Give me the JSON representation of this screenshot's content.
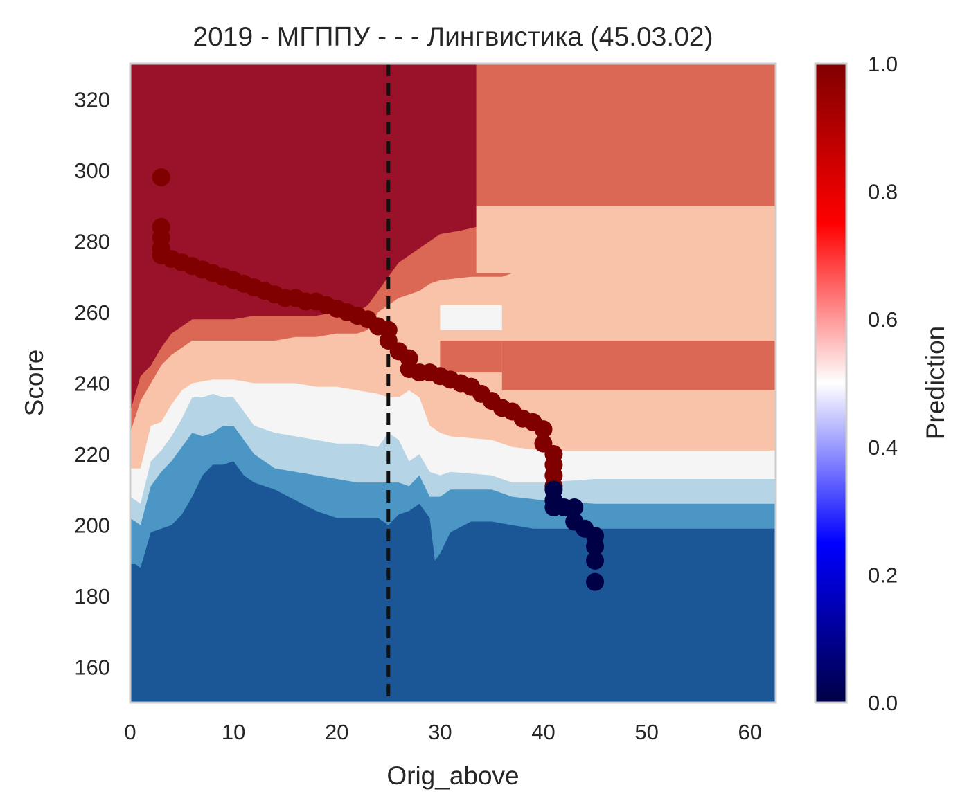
{
  "chart_data": {
    "type": "heatmap",
    "title": "2019 - МГППУ - - - Лингвистика (45.03.02)",
    "xlabel": "Orig_above",
    "ylabel": "Score",
    "xlim": [
      0,
      62.5
    ],
    "ylim": [
      150,
      330
    ],
    "x_ticks": [
      0,
      10,
      20,
      30,
      40,
      50,
      60
    ],
    "y_ticks": [
      160,
      180,
      200,
      220,
      240,
      260,
      280,
      300,
      320
    ],
    "grid": false,
    "threshold_line": {
      "x": 25,
      "style": "dashed",
      "color": "#111111"
    },
    "colorbar": {
      "label": "Prediction",
      "range": [
        0,
        1
      ],
      "ticks": [
        "0.0",
        "0.2",
        "0.4",
        "0.6",
        "0.8",
        "1.0"
      ],
      "cmap": "seismic"
    },
    "contour_levels": [
      {
        "range": [
          0.0,
          0.15
        ],
        "color": "#1b5797"
      },
      {
        "range": [
          0.15,
          0.3
        ],
        "color": "#4b96c5"
      },
      {
        "range": [
          0.3,
          0.45
        ],
        "color": "#b5d5e7"
      },
      {
        "range": [
          0.45,
          0.6
        ],
        "color": "#f5f5f5"
      },
      {
        "range": [
          0.6,
          0.75
        ],
        "color": "#f8c3a8"
      },
      {
        "range": [
          0.75,
          0.9
        ],
        "color": "#db6855"
      },
      {
        "range": [
          0.9,
          1.0
        ],
        "color": "#9a1229"
      }
    ],
    "contour_boundaries": {
      "low_1": [
        [
          0,
          189
        ],
        [
          0.5,
          189
        ],
        [
          1,
          188
        ],
        [
          2,
          198
        ],
        [
          3,
          199
        ],
        [
          4,
          200
        ],
        [
          5,
          203
        ],
        [
          6,
          208
        ],
        [
          7,
          214
        ],
        [
          8,
          217
        ],
        [
          9,
          217
        ],
        [
          10,
          218
        ],
        [
          11,
          214
        ],
        [
          12,
          212
        ],
        [
          14,
          210
        ],
        [
          16,
          207
        ],
        [
          18,
          204
        ],
        [
          20,
          202
        ],
        [
          22,
          202
        ],
        [
          24,
          202
        ],
        [
          25,
          200
        ],
        [
          26,
          203
        ],
        [
          27,
          204
        ],
        [
          28,
          206
        ],
        [
          29,
          202
        ],
        [
          29.5,
          190
        ],
        [
          30,
          192
        ],
        [
          31,
          198
        ],
        [
          33,
          201
        ],
        [
          35,
          201
        ],
        [
          37,
          200
        ],
        [
          39,
          199
        ],
        [
          41,
          199
        ],
        [
          45,
          199
        ],
        [
          62.5,
          199
        ]
      ],
      "low_2": [
        [
          0,
          202
        ],
        [
          1,
          200
        ],
        [
          2,
          211
        ],
        [
          3,
          215
        ],
        [
          4,
          218
        ],
        [
          5,
          222
        ],
        [
          6,
          226
        ],
        [
          7,
          225
        ],
        [
          8,
          226
        ],
        [
          9,
          228
        ],
        [
          10,
          228
        ],
        [
          11,
          224
        ],
        [
          12,
          220
        ],
        [
          14,
          216
        ],
        [
          16,
          215
        ],
        [
          18,
          214
        ],
        [
          20,
          213
        ],
        [
          22,
          212
        ],
        [
          24,
          212
        ],
        [
          25,
          212
        ],
        [
          26,
          212
        ],
        [
          27,
          211
        ],
        [
          28,
          214
        ],
        [
          29,
          208
        ],
        [
          30,
          208
        ],
        [
          31,
          210
        ],
        [
          35,
          210
        ],
        [
          37,
          208
        ],
        [
          40,
          207
        ],
        [
          45,
          206
        ],
        [
          62.5,
          206
        ]
      ],
      "mid": [
        [
          0,
          208
        ],
        [
          1,
          206
        ],
        [
          2,
          218
        ],
        [
          3,
          221
        ],
        [
          4,
          225
        ],
        [
          5,
          230
        ],
        [
          6,
          236
        ],
        [
          7,
          236
        ],
        [
          8,
          237
        ],
        [
          9,
          236
        ],
        [
          10,
          236
        ],
        [
          11,
          232
        ],
        [
          12,
          228
        ],
        [
          14,
          226
        ],
        [
          16,
          225
        ],
        [
          18,
          224
        ],
        [
          20,
          223
        ],
        [
          22,
          223
        ],
        [
          24,
          222
        ],
        [
          25,
          226
        ],
        [
          26,
          224
        ],
        [
          27,
          218
        ],
        [
          28,
          220
        ],
        [
          29,
          215
        ],
        [
          30,
          214
        ],
        [
          31,
          215
        ],
        [
          35,
          214
        ],
        [
          37,
          212
        ],
        [
          40,
          212
        ],
        [
          45,
          213
        ],
        [
          62.5,
          213
        ]
      ],
      "upper": [
        [
          0,
          216
        ],
        [
          1,
          216
        ],
        [
          2,
          228
        ],
        [
          3,
          229
        ],
        [
          4,
          234
        ],
        [
          5,
          238
        ],
        [
          6,
          240
        ],
        [
          8,
          241
        ],
        [
          10,
          241
        ],
        [
          12,
          240
        ],
        [
          14,
          240
        ],
        [
          16,
          240
        ],
        [
          18,
          239
        ],
        [
          20,
          239
        ],
        [
          22,
          238
        ],
        [
          24,
          237
        ],
        [
          25,
          236
        ],
        [
          26,
          236
        ],
        [
          27,
          238
        ],
        [
          28,
          236
        ],
        [
          29,
          228
        ],
        [
          30,
          226
        ],
        [
          31,
          225
        ],
        [
          35,
          224
        ],
        [
          37,
          222
        ],
        [
          40,
          221
        ],
        [
          45,
          221
        ],
        [
          62.5,
          221
        ]
      ],
      "high_1": [
        [
          0,
          226
        ],
        [
          1,
          235
        ],
        [
          2,
          240
        ],
        [
          3,
          245
        ],
        [
          4,
          248
        ],
        [
          5,
          250
        ],
        [
          6,
          252
        ],
        [
          8,
          252
        ],
        [
          10,
          252
        ],
        [
          12,
          252
        ],
        [
          14,
          252
        ],
        [
          16,
          253
        ],
        [
          18,
          253
        ],
        [
          20,
          254
        ],
        [
          22,
          254
        ],
        [
          23,
          255
        ],
        [
          24,
          260
        ],
        [
          25,
          262
        ],
        [
          26,
          264
        ],
        [
          28,
          266
        ],
        [
          29,
          268
        ],
        [
          30,
          269
        ],
        [
          33,
          270
        ],
        [
          36,
          270
        ],
        [
          37,
          271
        ],
        [
          40,
          271
        ],
        [
          45,
          271
        ],
        [
          50,
          271
        ],
        [
          62.5,
          271
        ]
      ],
      "high_2": [
        [
          0,
          232
        ],
        [
          1,
          242
        ],
        [
          2,
          245
        ],
        [
          3,
          250
        ],
        [
          4,
          254
        ],
        [
          5,
          256
        ],
        [
          6,
          258
        ],
        [
          8,
          258
        ],
        [
          10,
          258
        ],
        [
          12,
          259
        ],
        [
          14,
          259
        ],
        [
          16,
          259
        ],
        [
          18,
          259
        ],
        [
          20,
          260
        ],
        [
          22,
          260
        ],
        [
          23,
          262
        ],
        [
          24,
          266
        ],
        [
          25,
          270
        ],
        [
          26,
          274
        ],
        [
          28,
          278
        ],
        [
          30,
          282
        ],
        [
          32,
          283
        ],
        [
          33.5,
          284
        ],
        [
          33.5,
          330
        ]
      ]
    },
    "points": {
      "series": [
        {
          "class": "pred_1",
          "x": [
            3,
            3,
            3,
            3,
            3,
            4,
            5,
            6,
            7,
            8,
            9,
            10,
            11,
            12,
            13,
            14,
            15,
            16,
            17,
            18,
            19,
            20,
            21,
            22,
            23,
            24,
            25,
            25,
            26,
            27,
            27,
            28,
            29,
            30,
            31,
            32,
            33,
            34,
            35,
            36,
            37,
            38,
            39,
            40,
            40,
            41,
            41,
            41,
            41
          ],
          "y": [
            298,
            284,
            281,
            278,
            276,
            275,
            274,
            273,
            272,
            271,
            270,
            269,
            268,
            267,
            266,
            265,
            264,
            264,
            263,
            263,
            262,
            261,
            260,
            259,
            258,
            256,
            255,
            252,
            249,
            247,
            244,
            243,
            243,
            242,
            241,
            240,
            239,
            237,
            235,
            233,
            232,
            230,
            229,
            227,
            223,
            220,
            217,
            214,
            211
          ]
        },
        {
          "class": "pred_0",
          "x": [
            41,
            41,
            41,
            42,
            43,
            43,
            44,
            45,
            45,
            45,
            45
          ],
          "y": [
            210,
            207,
            205,
            205,
            205,
            201,
            199,
            197,
            194,
            190,
            184
          ]
        }
      ],
      "colors": {
        "pred_1": "#800000",
        "pred_0": "#000046"
      }
    }
  }
}
